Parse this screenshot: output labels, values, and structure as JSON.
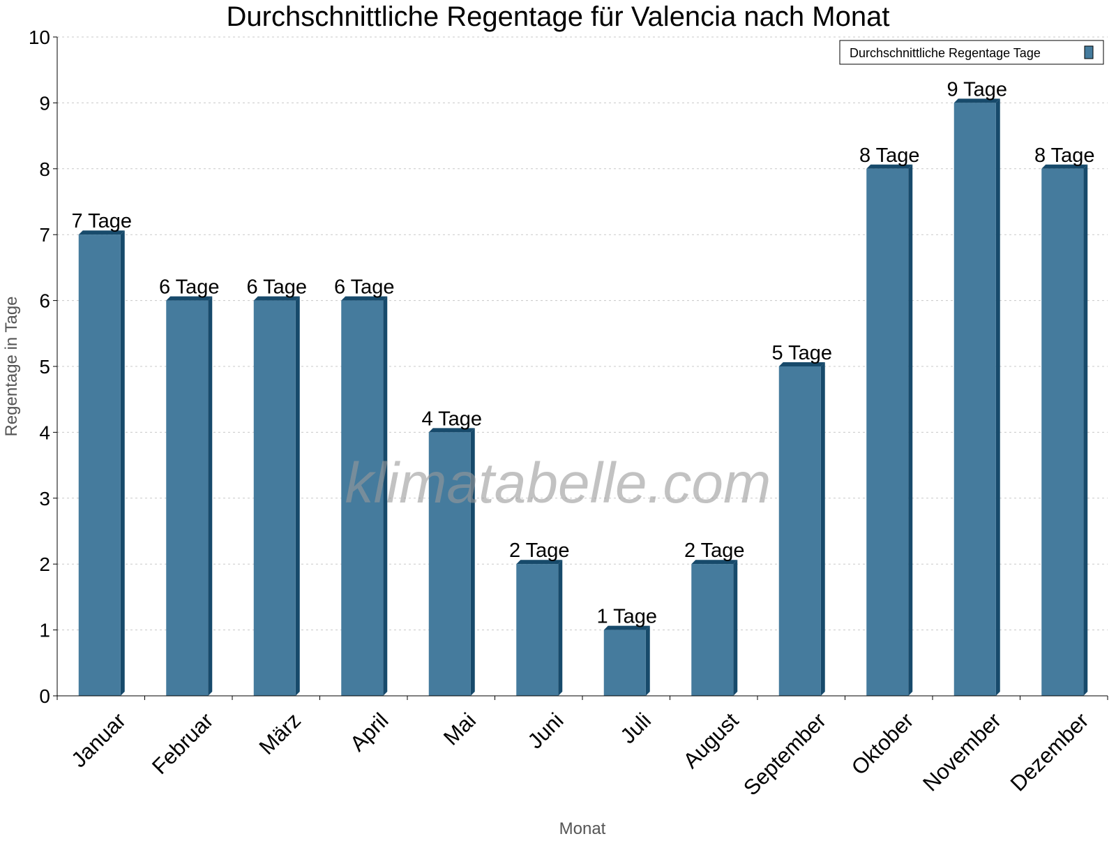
{
  "chart_data": {
    "type": "bar",
    "title": "Durchschnittliche Regentage für Valencia nach Monat",
    "xlabel": "Monat",
    "ylabel": "Regentage in Tage",
    "categories": [
      "Januar",
      "Februar",
      "März",
      "April",
      "Mai",
      "Juni",
      "Juli",
      "August",
      "September",
      "Oktober",
      "November",
      "Dezember"
    ],
    "series": [
      {
        "name": "Durchschnittliche Regentage Tage",
        "values": [
          7,
          6,
          6,
          6,
          4,
          2,
          1,
          2,
          5,
          8,
          9,
          8
        ]
      }
    ],
    "value_label_suffix": " Tage",
    "ylim": [
      0,
      10
    ],
    "yticks": [
      0,
      1,
      2,
      3,
      4,
      5,
      6,
      7,
      8,
      9,
      10
    ],
    "grid": true,
    "legend": "top-right",
    "watermark": "klimatabelle.com",
    "colors": {
      "bar": "#457b9d",
      "bar_side": "#174a6b"
    }
  }
}
